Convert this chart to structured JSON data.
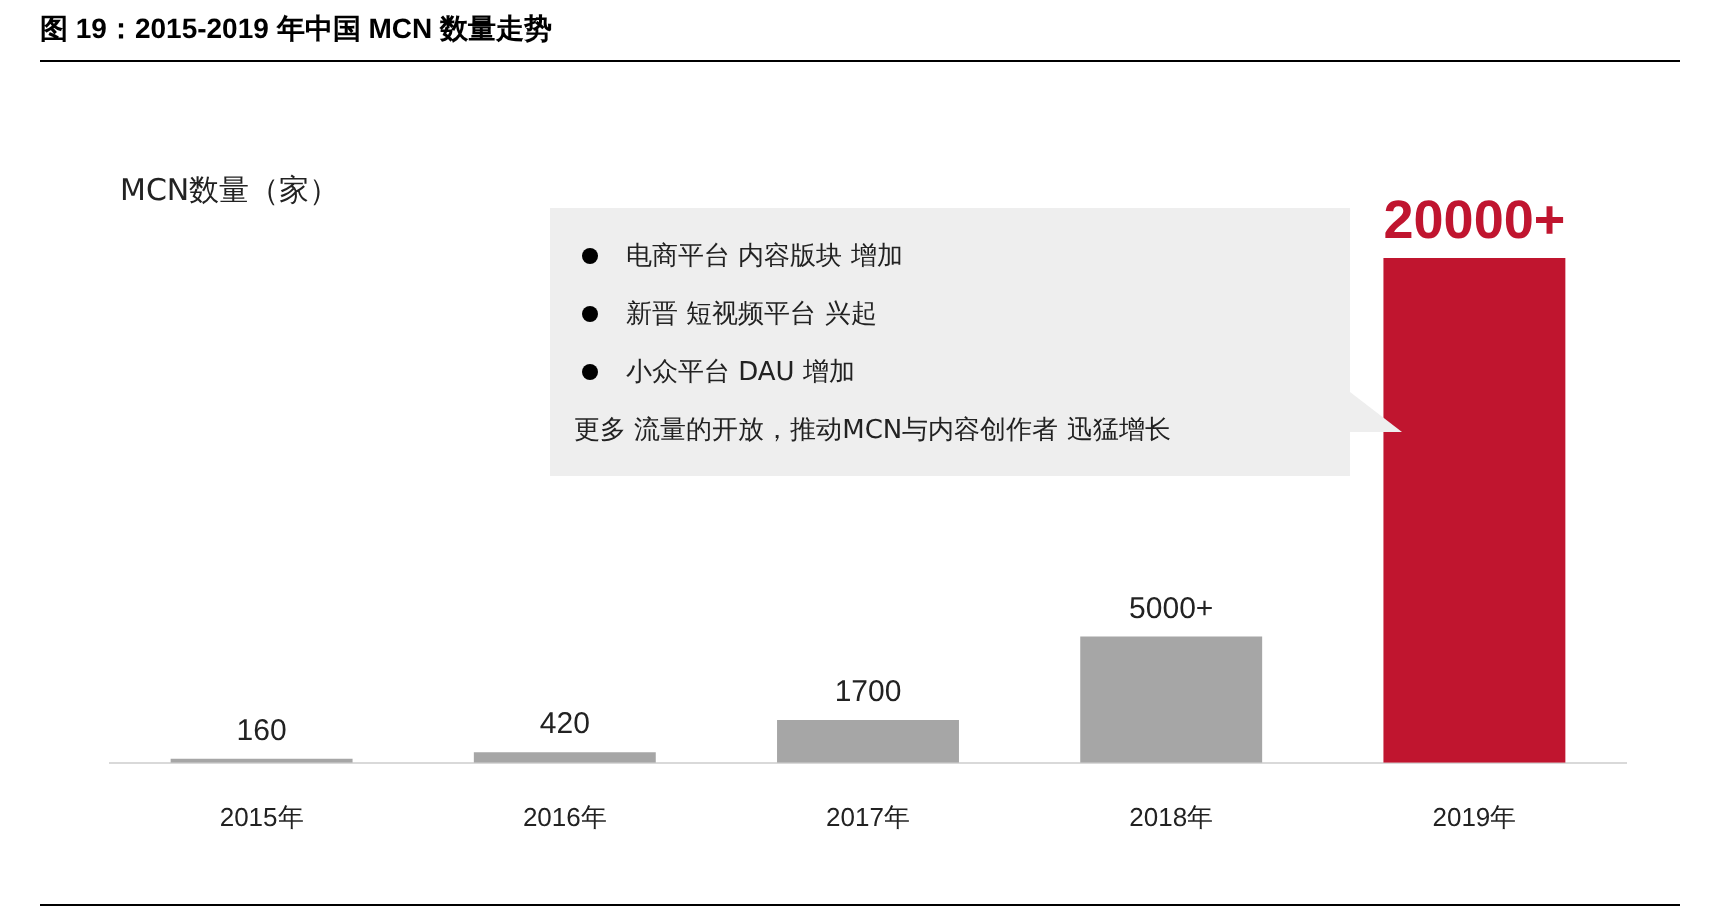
{
  "chart_data": {
    "type": "bar",
    "title": "图 19：2015-2019 年中国 MCN 数量走势",
    "ylabel": "MCN数量（家）",
    "categories": [
      "2015年",
      "2016年",
      "2017年",
      "2018年",
      "2019年"
    ],
    "values": [
      160,
      420,
      1700,
      5000,
      20000
    ],
    "value_labels": [
      "160",
      "420",
      "1700",
      "5000+",
      "20000+"
    ],
    "colors": [
      "#a6a6a6",
      "#a6a6a6",
      "#a6a6a6",
      "#a6a6a6",
      "#c0152f"
    ],
    "annotations": [
      "电商平台 内容版块 增加",
      "新晋 短视频平台 兴起",
      "小众平台 DAU 增加",
      "更多 流量的开放，推动MCN与内容创作者 迅猛增长"
    ],
    "grid": false,
    "legend": false
  }
}
